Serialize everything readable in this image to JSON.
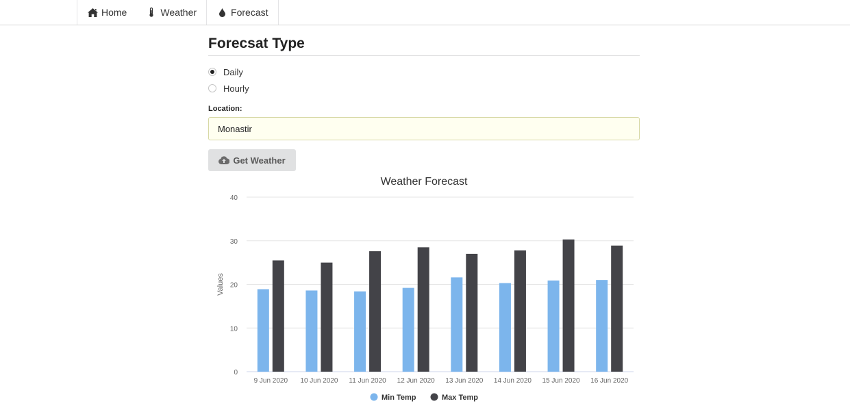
{
  "nav": {
    "items": [
      {
        "label": "Home",
        "icon": "home-icon"
      },
      {
        "label": "Weather",
        "icon": "thermometer-icon"
      },
      {
        "label": "Forecast",
        "icon": "droplet-icon"
      }
    ]
  },
  "form": {
    "heading": "Forecsat Type",
    "options": [
      {
        "label": "Daily",
        "checked": true
      },
      {
        "label": "Hourly",
        "checked": false
      }
    ],
    "location_label": "Location:",
    "location_value": "Monastir",
    "button_label": "Get Weather",
    "button_icon": "cloud-upload-icon"
  },
  "chart_data": {
    "type": "bar",
    "title": "Weather Forecast",
    "xlabel": "",
    "ylabel": "Values",
    "ylim": [
      0,
      40
    ],
    "yticks": [
      0,
      10,
      20,
      30,
      40
    ],
    "grid": true,
    "legend_position": "bottom",
    "categories": [
      "9 Jun 2020",
      "10 Jun 2020",
      "11 Jun 2020",
      "12 Jun 2020",
      "13 Jun 2020",
      "14 Jun 2020",
      "15 Jun 2020",
      "16 Jun 2020"
    ],
    "series": [
      {
        "name": "Min Temp",
        "color": "#7cb5ec",
        "values": [
          18.9,
          18.6,
          18.4,
          19.2,
          21.6,
          20.3,
          20.9,
          21.0
        ]
      },
      {
        "name": "Max Temp",
        "color": "#434348",
        "values": [
          25.5,
          25.0,
          27.6,
          28.5,
          27.0,
          27.8,
          30.3,
          28.9
        ]
      }
    ]
  }
}
